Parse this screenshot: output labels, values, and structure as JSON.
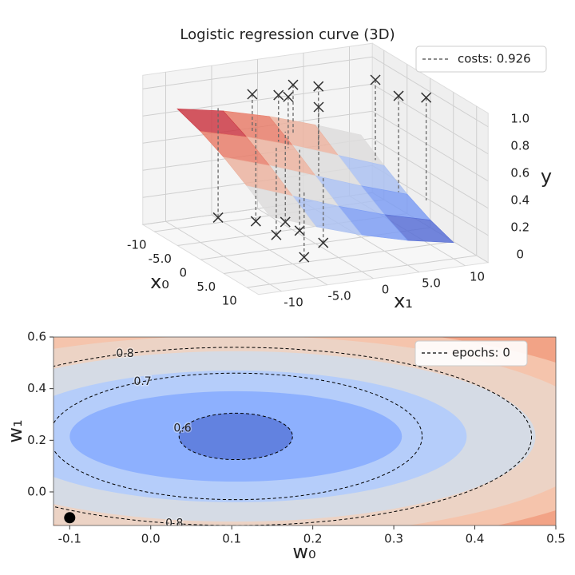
{
  "chart_data": [
    {
      "type": "surface3d",
      "title": "Logistic regression curve (3D)",
      "xlabel": "x₀",
      "ylabel": "x₁",
      "zlabel": "y",
      "xlim": [
        -12.5,
        12.5
      ],
      "ylim": [
        -12.5,
        12.5
      ],
      "zlim": [
        0,
        1.1
      ],
      "xticks": [
        -10,
        {
          "value": -5,
          "label": "-5.0"
        },
        0,
        {
          "value": 5,
          "label": "5.0"
        },
        10
      ],
      "yticks": [
        -10,
        {
          "value": -5,
          "label": "-5.0"
        },
        0,
        {
          "value": 5,
          "label": "5.0"
        },
        10
      ],
      "zticks": [
        0,
        0.2,
        0.4,
        0.6,
        0.8,
        {
          "value": 1,
          "label": "1.0"
        }
      ],
      "surface": {
        "x": [
          -10,
          -5,
          0,
          5,
          10
        ],
        "y": [
          -10,
          -5,
          0,
          5,
          10
        ],
        "z": [
          [
            0.881,
            0.818,
            0.731,
            0.622,
            0.5
          ],
          [
            0.818,
            0.731,
            0.622,
            0.5,
            0.378
          ],
          [
            0.731,
            0.622,
            0.5,
            0.378,
            0.269
          ],
          [
            0.622,
            0.5,
            0.378,
            0.269,
            0.182
          ],
          [
            0.5,
            0.378,
            0.269,
            0.182,
            0.119
          ]
        ]
      },
      "points": {
        "x": [
          -6.5,
          -5.2,
          -4.3,
          -7.6,
          -6.1,
          -0.1,
          -5.7,
          -0.1,
          1.5,
          -11.5,
          -8.9,
          -4.1,
          -7.5,
          -4.4,
          3.5,
          0.1
        ],
        "y": [
          -3.6,
          -1.4,
          -0.8,
          1.4,
          3.4,
          0.4,
          9.4,
          9.1,
          11.3,
          -4.8,
          -2.0,
          -2.2,
          0.5,
          0.5,
          -3.0,
          0.8
        ],
        "z": [
          1,
          1,
          1,
          1,
          1,
          1,
          1,
          1,
          1,
          0,
          0,
          0,
          0,
          0,
          0,
          0
        ],
        "color": "#333333",
        "line_color": "#666666"
      },
      "legend": "costs: 0.926",
      "legend_loc": "upper right"
    },
    {
      "type": "contour",
      "xlabel": "w₀",
      "ylabel": "w₁",
      "xlim": [
        -0.12,
        0.5
      ],
      "ylim": [
        -0.13,
        0.6
      ],
      "xticks": [
        -0.1,
        {
          "value": 0,
          "label": "0.0"
        },
        0.1,
        0.2,
        0.3,
        0.4,
        0.5
      ],
      "yticks": [
        {
          "value": 0,
          "label": "0.0"
        },
        0.2,
        0.4,
        0.6
      ],
      "center": [
        0.105,
        0.215
      ],
      "background_color": "#e36c55",
      "fills": [
        {
          "color": "#f2a386",
          "rx": 0.62,
          "ry": 0.52
        },
        {
          "color": "#f5c4ac",
          "rx": 0.52,
          "ry": 0.44
        },
        {
          "color": "#ecd3c5",
          "rx": 0.455,
          "ry": 0.39
        },
        {
          "color": "#d5dbe5",
          "rx": 0.37,
          "ry": 0.33
        },
        {
          "color": "#b5cdfa",
          "rx": 0.285,
          "ry": 0.255
        },
        {
          "color": "#8db0fe",
          "rx": 0.205,
          "ry": 0.175
        },
        {
          "color": "#6282e0",
          "rx": 0.07,
          "ry": 0.09
        }
      ],
      "contours": [
        {
          "level": 0.6,
          "rx": 0.07,
          "ry": 0.09
        },
        {
          "level": 0.7,
          "rx": 0.23,
          "ry": 0.245
        },
        {
          "level": 0.8,
          "rx": 0.365,
          "ry": 0.345
        }
      ],
      "point": [
        -0.1,
        -0.1
      ],
      "point_color": "#000000",
      "legend": "epochs: 0",
      "legend_loc": "upper right"
    }
  ]
}
